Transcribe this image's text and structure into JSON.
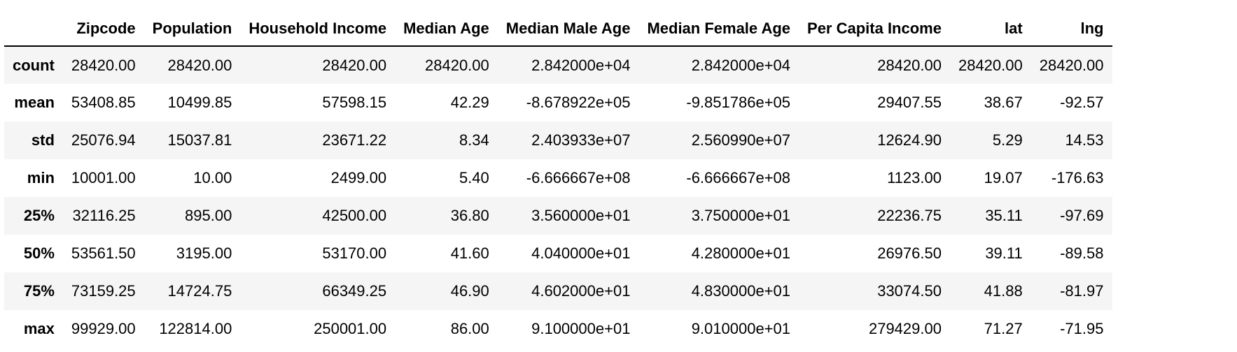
{
  "table": {
    "index_header": "",
    "columns": [
      "Zipcode",
      "Population",
      "Household Income",
      "Median Age",
      "Median Male Age",
      "Median Female Age",
      "Per Capita Income",
      "lat",
      "lng"
    ],
    "rows": [
      {
        "label": "count",
        "values": [
          "28420.00",
          "28420.00",
          "28420.00",
          "28420.00",
          "2.842000e+04",
          "2.842000e+04",
          "28420.00",
          "28420.00",
          "28420.00"
        ]
      },
      {
        "label": "mean",
        "values": [
          "53408.85",
          "10499.85",
          "57598.15",
          "42.29",
          "-8.678922e+05",
          "-9.851786e+05",
          "29407.55",
          "38.67",
          "-92.57"
        ]
      },
      {
        "label": "std",
        "values": [
          "25076.94",
          "15037.81",
          "23671.22",
          "8.34",
          "2.403933e+07",
          "2.560990e+07",
          "12624.90",
          "5.29",
          "14.53"
        ]
      },
      {
        "label": "min",
        "values": [
          "10001.00",
          "10.00",
          "2499.00",
          "5.40",
          "-6.666667e+08",
          "-6.666667e+08",
          "1123.00",
          "19.07",
          "-176.63"
        ]
      },
      {
        "label": "25%",
        "values": [
          "32116.25",
          "895.00",
          "42500.00",
          "36.80",
          "3.560000e+01",
          "3.750000e+01",
          "22236.75",
          "35.11",
          "-97.69"
        ]
      },
      {
        "label": "50%",
        "values": [
          "53561.50",
          "3195.00",
          "53170.00",
          "41.60",
          "4.040000e+01",
          "4.280000e+01",
          "26976.50",
          "39.11",
          "-89.58"
        ]
      },
      {
        "label": "75%",
        "values": [
          "73159.25",
          "14724.75",
          "66349.25",
          "46.90",
          "4.602000e+01",
          "4.830000e+01",
          "33074.50",
          "41.88",
          "-81.97"
        ]
      },
      {
        "label": "max",
        "values": [
          "99929.00",
          "122814.00",
          "250001.00",
          "86.00",
          "9.100000e+01",
          "9.010000e+01",
          "279429.00",
          "71.27",
          "-71.95"
        ]
      }
    ]
  }
}
